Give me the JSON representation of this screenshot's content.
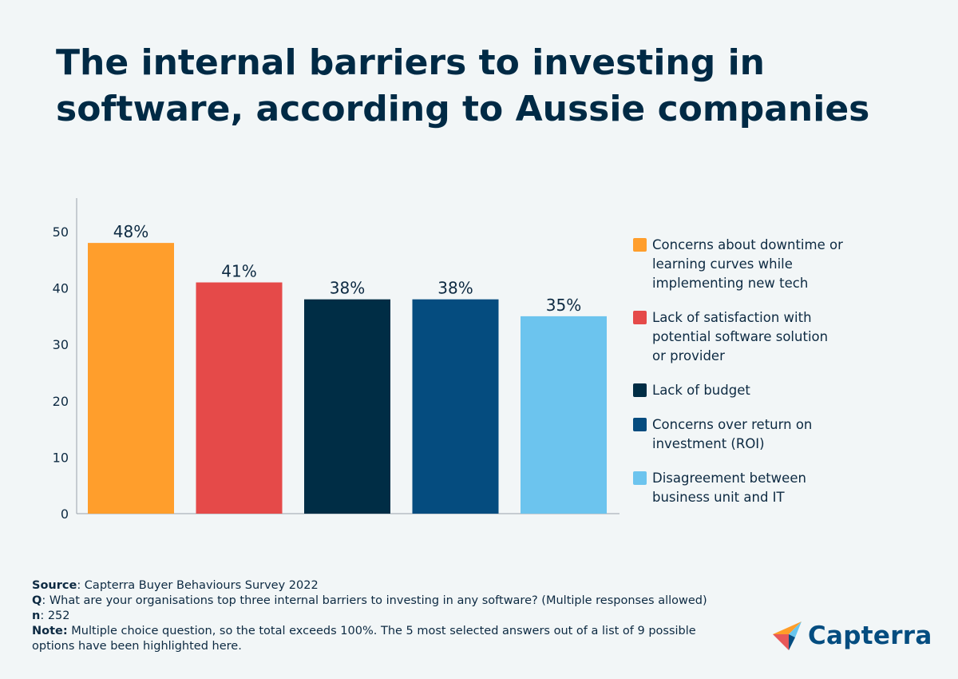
{
  "title": {
    "line1": "The internal barriers to investing in",
    "line2": "software, according to Aussie companies"
  },
  "chart_data": {
    "type": "bar",
    "categories": [
      "Concerns about downtime or learning curves while implementing new tech",
      "Lack of satisfaction with potential software solution or provider",
      "Lack of budget",
      "Concerns over return on investment (ROI)",
      "Disagreement between business unit and IT"
    ],
    "values": [
      48,
      41,
      38,
      38,
      35
    ],
    "data_labels": [
      "48%",
      "41%",
      "38%",
      "38%",
      "35%"
    ],
    "colors": [
      "#ff9e2c",
      "#e54a49",
      "#002d45",
      "#054c7f",
      "#6cc4ee"
    ],
    "ylim": [
      0,
      55
    ],
    "yticks": [
      0,
      10,
      20,
      30,
      40,
      50
    ],
    "grid": false,
    "legend_position": "right"
  },
  "legend": [
    {
      "label": "Concerns about downtime or\nlearning curves while\nimplementing new tech",
      "color": "#ff9e2c"
    },
    {
      "label": "Lack of satisfaction with\npotential software solution\nor provider",
      "color": "#e54a49"
    },
    {
      "label": "Lack of budget",
      "color": "#002d45"
    },
    {
      "label": "Concerns over return on\ninvestment (ROI)",
      "color": "#054c7f"
    },
    {
      "label": "Disagreement between\nbusiness unit and IT",
      "color": "#6cc4ee"
    }
  ],
  "footer": {
    "source_key": "Source",
    "source_text": ": Capterra Buyer Behaviours Survey 2022",
    "q_key": "Q",
    "q_text": ": What are your organisations top three internal barriers to investing in any software? (Multiple responses allowed)",
    "n_key": "n",
    "n_text": ": 252",
    "note_key": "Note:",
    "note_text": " Multiple choice question, so the total exceeds 100%. The 5 most selected answers out of a list of 9 possible options have been highlighted here."
  },
  "logo": {
    "name": "capterra-logo",
    "wordmark": "Capterra",
    "colors": {
      "orange": "#ff9d28",
      "blue": "#68c5ed",
      "dark": "#044d80",
      "red": "#e54747"
    }
  }
}
